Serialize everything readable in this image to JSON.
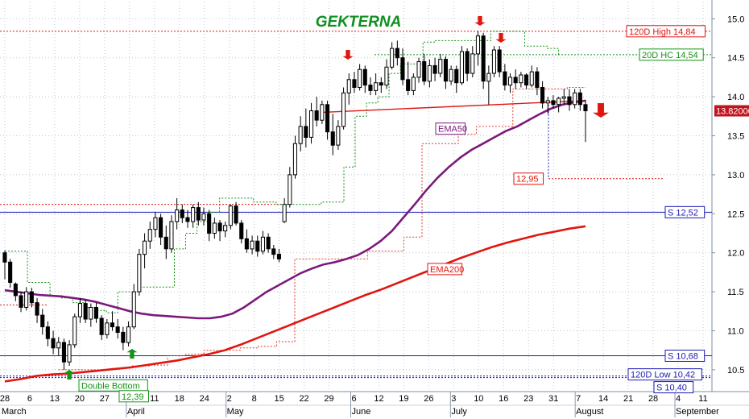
{
  "chart_data": {
    "type": "candlestick",
    "title": "GEKTERNA",
    "ylim": [
      10.22,
      15.22
    ],
    "y_ticks": [
      "15.0",
      "14.5",
      "14.0",
      "13.5",
      "13.0",
      "12.5",
      "12.0",
      "11.5",
      "11.0",
      "10.5"
    ],
    "x_day_ticks": [
      "28",
      "6",
      "13",
      "20",
      "27",
      "3",
      "11",
      "18",
      "24",
      "2",
      "8",
      "15",
      "22",
      "29",
      "6",
      "12",
      "19",
      "26",
      "3",
      "10",
      "16",
      "23",
      "31",
      "7",
      "14",
      "21",
      "28",
      "4",
      "11"
    ],
    "months": [
      "March",
      "April",
      "May",
      "June",
      "July",
      "August",
      "September"
    ],
    "last_price": "13.82000",
    "candles": [
      {
        "o": 12.0,
        "h": 12.03,
        "l": 11.66,
        "c": 11.88
      },
      {
        "o": 11.88,
        "h": 11.92,
        "l": 11.55,
        "c": 11.62
      },
      {
        "o": 11.6,
        "h": 11.62,
        "l": 11.38,
        "c": 11.45
      },
      {
        "o": 11.45,
        "h": 11.5,
        "l": 11.24,
        "c": 11.3
      },
      {
        "o": 11.3,
        "h": 11.56,
        "l": 11.26,
        "c": 11.5
      },
      {
        "o": 11.5,
        "h": 11.55,
        "l": 11.3,
        "c": 11.36
      },
      {
        "o": 11.36,
        "h": 11.42,
        "l": 11.1,
        "c": 11.2
      },
      {
        "o": 11.2,
        "h": 11.28,
        "l": 10.95,
        "c": 11.05
      },
      {
        "o": 11.05,
        "h": 11.12,
        "l": 10.8,
        "c": 10.9
      },
      {
        "o": 10.9,
        "h": 11.0,
        "l": 10.7,
        "c": 10.78
      },
      {
        "o": 10.78,
        "h": 10.92,
        "l": 10.68,
        "c": 10.85
      },
      {
        "o": 10.85,
        "h": 10.9,
        "l": 10.5,
        "c": 10.6
      },
      {
        "o": 10.6,
        "h": 10.88,
        "l": 10.55,
        "c": 10.82
      },
      {
        "o": 10.82,
        "h": 11.22,
        "l": 10.78,
        "c": 11.18
      },
      {
        "o": 11.18,
        "h": 11.42,
        "l": 11.1,
        "c": 11.35
      },
      {
        "o": 11.35,
        "h": 11.4,
        "l": 11.1,
        "c": 11.15
      },
      {
        "o": 11.15,
        "h": 11.35,
        "l": 11.05,
        "c": 11.3
      },
      {
        "o": 11.3,
        "h": 11.36,
        "l": 11.1,
        "c": 11.16
      },
      {
        "o": 11.16,
        "h": 11.2,
        "l": 10.88,
        "c": 10.95
      },
      {
        "o": 10.95,
        "h": 11.15,
        "l": 10.9,
        "c": 11.1
      },
      {
        "o": 11.1,
        "h": 11.25,
        "l": 11.0,
        "c": 11.05
      },
      {
        "o": 11.05,
        "h": 11.15,
        "l": 10.9,
        "c": 10.98
      },
      {
        "o": 10.98,
        "h": 11.05,
        "l": 10.75,
        "c": 10.85
      },
      {
        "o": 10.85,
        "h": 11.12,
        "l": 10.8,
        "c": 11.05
      },
      {
        "o": 11.05,
        "h": 11.6,
        "l": 11.02,
        "c": 11.5
      },
      {
        "o": 11.5,
        "h": 12.05,
        "l": 11.45,
        "c": 11.98
      },
      {
        "o": 11.98,
        "h": 12.25,
        "l": 11.8,
        "c": 12.15
      },
      {
        "o": 12.15,
        "h": 12.4,
        "l": 12.05,
        "c": 12.3
      },
      {
        "o": 12.3,
        "h": 12.52,
        "l": 12.2,
        "c": 12.45
      },
      {
        "o": 12.45,
        "h": 12.5,
        "l": 12.1,
        "c": 12.2
      },
      {
        "o": 12.2,
        "h": 12.35,
        "l": 11.92,
        "c": 12.05
      },
      {
        "o": 12.05,
        "h": 12.48,
        "l": 12.0,
        "c": 12.4
      },
      {
        "o": 12.4,
        "h": 12.7,
        "l": 12.3,
        "c": 12.55
      },
      {
        "o": 12.55,
        "h": 12.62,
        "l": 12.38,
        "c": 12.45
      },
      {
        "o": 12.45,
        "h": 12.55,
        "l": 12.32,
        "c": 12.4
      },
      {
        "o": 12.4,
        "h": 12.62,
        "l": 12.32,
        "c": 12.58
      },
      {
        "o": 12.58,
        "h": 12.65,
        "l": 12.35,
        "c": 12.42
      },
      {
        "o": 12.42,
        "h": 12.58,
        "l": 12.35,
        "c": 12.5
      },
      {
        "o": 12.5,
        "h": 12.55,
        "l": 12.15,
        "c": 12.25
      },
      {
        "o": 12.25,
        "h": 12.45,
        "l": 12.18,
        "c": 12.38
      },
      {
        "o": 12.38,
        "h": 12.42,
        "l": 12.15,
        "c": 12.28
      },
      {
        "o": 12.28,
        "h": 12.4,
        "l": 12.2,
        "c": 12.35
      },
      {
        "o": 12.35,
        "h": 12.62,
        "l": 12.3,
        "c": 12.6
      },
      {
        "o": 12.6,
        "h": 12.65,
        "l": 12.35,
        "c": 12.38
      },
      {
        "o": 12.38,
        "h": 12.42,
        "l": 12.12,
        "c": 12.18
      },
      {
        "o": 12.18,
        "h": 12.3,
        "l": 12.0,
        "c": 12.05
      },
      {
        "o": 12.05,
        "h": 12.22,
        "l": 11.98,
        "c": 12.15
      },
      {
        "o": 12.15,
        "h": 12.22,
        "l": 11.95,
        "c": 12.02
      },
      {
        "o": 12.02,
        "h": 12.28,
        "l": 11.98,
        "c": 12.2
      },
      {
        "o": 12.2,
        "h": 12.25,
        "l": 12.0,
        "c": 12.05
      },
      {
        "o": 12.05,
        "h": 12.1,
        "l": 11.92,
        "c": 11.98
      },
      {
        "o": 11.98,
        "h": 12.05,
        "l": 11.88,
        "c": 11.92
      },
      {
        "o": 12.4,
        "h": 12.7,
        "l": 12.38,
        "c": 12.62
      },
      {
        "o": 12.62,
        "h": 13.1,
        "l": 12.58,
        "c": 13.0
      },
      {
        "o": 13.0,
        "h": 13.5,
        "l": 12.95,
        "c": 13.4
      },
      {
        "o": 13.4,
        "h": 13.75,
        "l": 13.3,
        "c": 13.62
      },
      {
        "o": 13.62,
        "h": 13.85,
        "l": 13.35,
        "c": 13.48
      },
      {
        "o": 13.48,
        "h": 13.92,
        "l": 13.4,
        "c": 13.82
      },
      {
        "o": 13.82,
        "h": 14.0,
        "l": 13.62,
        "c": 13.7
      },
      {
        "o": 13.7,
        "h": 13.95,
        "l": 13.65,
        "c": 13.9
      },
      {
        "o": 13.9,
        "h": 13.95,
        "l": 13.45,
        "c": 13.55
      },
      {
        "o": 13.55,
        "h": 13.78,
        "l": 13.25,
        "c": 13.38
      },
      {
        "o": 13.38,
        "h": 13.7,
        "l": 13.32,
        "c": 13.62
      },
      {
        "o": 13.62,
        "h": 14.12,
        "l": 13.58,
        "c": 14.05
      },
      {
        "o": 14.05,
        "h": 14.3,
        "l": 13.9,
        "c": 14.22
      },
      {
        "o": 14.22,
        "h": 14.32,
        "l": 14.05,
        "c": 14.12
      },
      {
        "o": 14.12,
        "h": 14.42,
        "l": 14.08,
        "c": 14.35
      },
      {
        "o": 14.35,
        "h": 14.4,
        "l": 14.05,
        "c": 14.15
      },
      {
        "o": 14.15,
        "h": 14.25,
        "l": 14.02,
        "c": 14.08
      },
      {
        "o": 14.08,
        "h": 14.3,
        "l": 14.02,
        "c": 14.18
      },
      {
        "o": 14.18,
        "h": 14.25,
        "l": 14.05,
        "c": 14.15
      },
      {
        "o": 14.15,
        "h": 14.48,
        "l": 14.1,
        "c": 14.38
      },
      {
        "o": 14.38,
        "h": 14.7,
        "l": 14.35,
        "c": 14.62
      },
      {
        "o": 14.62,
        "h": 14.72,
        "l": 14.4,
        "c": 14.5
      },
      {
        "o": 14.5,
        "h": 14.62,
        "l": 14.15,
        "c": 14.22
      },
      {
        "o": 14.22,
        "h": 14.45,
        "l": 14.02,
        "c": 14.08
      },
      {
        "o": 14.08,
        "h": 14.3,
        "l": 14.02,
        "c": 14.25
      },
      {
        "o": 14.25,
        "h": 14.5,
        "l": 14.18,
        "c": 14.45
      },
      {
        "o": 14.45,
        "h": 14.55,
        "l": 14.15,
        "c": 14.2
      },
      {
        "o": 14.2,
        "h": 14.48,
        "l": 14.12,
        "c": 14.4
      },
      {
        "o": 14.4,
        "h": 14.5,
        "l": 14.2,
        "c": 14.3
      },
      {
        "o": 14.3,
        "h": 14.55,
        "l": 14.25,
        "c": 14.48
      },
      {
        "o": 14.48,
        "h": 14.52,
        "l": 14.1,
        "c": 14.2
      },
      {
        "o": 14.2,
        "h": 14.4,
        "l": 14.15,
        "c": 14.35
      },
      {
        "o": 14.35,
        "h": 14.4,
        "l": 14.05,
        "c": 14.18
      },
      {
        "o": 14.18,
        "h": 14.65,
        "l": 14.15,
        "c": 14.58
      },
      {
        "o": 14.58,
        "h": 14.62,
        "l": 14.2,
        "c": 14.3
      },
      {
        "o": 14.3,
        "h": 14.65,
        "l": 14.25,
        "c": 14.55
      },
      {
        "o": 14.55,
        "h": 14.84,
        "l": 14.4,
        "c": 14.78
      },
      {
        "o": 14.78,
        "h": 14.82,
        "l": 14.1,
        "c": 14.2
      },
      {
        "o": 14.2,
        "h": 14.4,
        "l": 13.9,
        "c": 14.3
      },
      {
        "o": 14.3,
        "h": 14.65,
        "l": 14.25,
        "c": 14.6
      },
      {
        "o": 14.6,
        "h": 14.65,
        "l": 14.25,
        "c": 14.32
      },
      {
        "o": 14.32,
        "h": 14.42,
        "l": 14.08,
        "c": 14.15
      },
      {
        "o": 14.15,
        "h": 14.3,
        "l": 14.05,
        "c": 14.25
      },
      {
        "o": 14.25,
        "h": 14.35,
        "l": 14.1,
        "c": 14.18
      },
      {
        "o": 14.18,
        "h": 14.32,
        "l": 14.12,
        "c": 14.28
      },
      {
        "o": 14.28,
        "h": 14.3,
        "l": 14.1,
        "c": 14.15
      },
      {
        "o": 14.15,
        "h": 14.4,
        "l": 14.12,
        "c": 14.32
      },
      {
        "o": 14.32,
        "h": 14.38,
        "l": 14.02,
        "c": 14.12
      },
      {
        "o": 14.12,
        "h": 14.2,
        "l": 13.85,
        "c": 13.92
      },
      {
        "o": 13.92,
        "h": 14.0,
        "l": 13.78,
        "c": 13.95
      },
      {
        "o": 13.95,
        "h": 14.02,
        "l": 13.85,
        "c": 13.9
      },
      {
        "o": 13.9,
        "h": 14.0,
        "l": 13.8,
        "c": 13.98
      },
      {
        "o": 13.98,
        "h": 14.1,
        "l": 13.9,
        "c": 14.0
      },
      {
        "o": 14.0,
        "h": 14.1,
        "l": 13.82,
        "c": 13.9
      },
      {
        "o": 13.9,
        "h": 14.1,
        "l": 13.85,
        "c": 14.05
      },
      {
        "o": 14.05,
        "h": 14.1,
        "l": 13.82,
        "c": 13.9
      },
      {
        "o": 13.9,
        "h": 13.96,
        "l": 13.42,
        "c": 13.82
      }
    ],
    "ema50": [
      11.52,
      11.5,
      11.48,
      11.46,
      11.45,
      11.44,
      11.42,
      11.4,
      11.37,
      11.33,
      11.29,
      11.25,
      11.22,
      11.2,
      11.19,
      11.18,
      11.17,
      11.16,
      11.16,
      11.18,
      11.22,
      11.3,
      11.4,
      11.5,
      11.58,
      11.66,
      11.74,
      11.8,
      11.85,
      11.88,
      11.92,
      11.97,
      12.05,
      12.15,
      12.28,
      12.45,
      12.62,
      12.8,
      12.96,
      13.1,
      13.22,
      13.32,
      13.4,
      13.48,
      13.56,
      13.62,
      13.7,
      13.78,
      13.85,
      13.9,
      13.93,
      13.95
    ],
    "ema200": [
      10.35,
      10.38,
      10.42,
      10.44,
      10.45,
      10.47,
      10.49,
      10.51,
      10.53,
      10.56,
      10.59,
      10.62,
      10.66,
      10.7,
      10.75,
      10.82,
      10.9,
      10.98,
      11.06,
      11.14,
      11.22,
      11.3,
      11.38,
      11.46,
      11.53,
      11.61,
      11.69,
      11.77,
      11.85,
      11.93,
      12.0,
      12.07,
      12.13,
      12.18,
      12.23,
      12.27,
      12.31,
      12.34
    ],
    "hc20": [
      12.02,
      12.02,
      11.62,
      11.62,
      11.45,
      11.42,
      11.36,
      11.3,
      11.26,
      11.23,
      11.5,
      11.5,
      11.56,
      11.56,
      11.56,
      12.05,
      12.25,
      12.4,
      12.52,
      12.7,
      12.7,
      12.7,
      12.65,
      12.65,
      12.62,
      12.62,
      12.62,
      12.62,
      12.65,
      12.65,
      13.1,
      13.75,
      13.92,
      14.0,
      14.3,
      14.42,
      14.42,
      14.7,
      14.72,
      14.72,
      14.72,
      14.72,
      14.72,
      14.84,
      14.84,
      14.84,
      14.65,
      14.65,
      14.62,
      14.54
    ],
    "support_red": [
      10.5,
      10.5,
      10.5,
      10.52,
      10.55,
      10.56,
      10.68,
      10.7,
      10.75,
      10.75,
      10.78,
      10.8,
      10.86,
      11.92,
      11.92,
      11.92,
      11.92,
      12.02,
      12.02,
      12.2,
      13.4,
      13.4,
      13.52,
      13.62,
      13.62,
      14.1,
      14.1,
      14.1,
      14.12,
      14.12
    ],
    "trendline": [
      13.8,
      13.95
    ],
    "labels": {
      "high120": "120D High 14,84",
      "hc20": "20D HC 14,54",
      "s1252": "S 12,52",
      "s1068": "S 10,68",
      "low120": "120D Low 10,42",
      "s1040": "S 10,40",
      "ema50": "EMA50",
      "ema200": "EMA200",
      "target": "12,95",
      "double_bottom": "Double Bottom",
      "db_value": "12,39"
    },
    "levels": {
      "high120": 14.84,
      "hc20": 14.54,
      "s1252": 12.52,
      "s1068": 10.68,
      "low120": 10.42,
      "s1040": 10.4,
      "target": 12.95
    },
    "colors": {
      "up": "#ffffff",
      "down": "#000000",
      "ema50": "#7b1a7b",
      "ema200": "#e0160f",
      "hc20": "#149414",
      "support_red": "#e23a2a",
      "blue": "#1a1ab4",
      "red": "#e0160f",
      "green": "#149414",
      "grid": "#b9c7d6",
      "last_bg": "#c0151e"
    }
  }
}
